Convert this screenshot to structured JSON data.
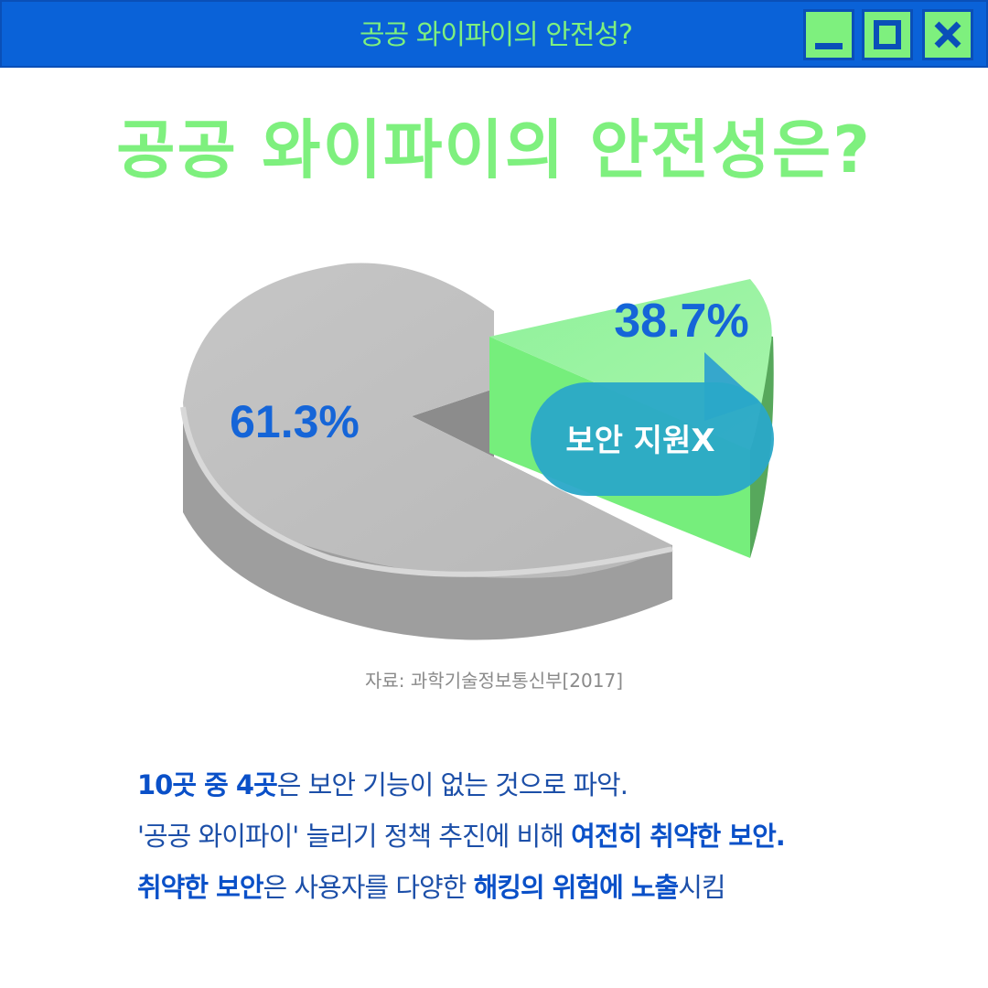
{
  "window": {
    "title": "공공 와이파이의 안전성?",
    "buttons": {
      "minimize": "minimize-icon",
      "maximize": "maximize-icon",
      "close": "close-icon"
    }
  },
  "headline": "공공 와이파이의 안전성은?",
  "chart_data": {
    "type": "pie",
    "title": "",
    "slices": [
      {
        "name": "",
        "value": 61.3,
        "label": "61.3%",
        "color": "#bdbdbd"
      },
      {
        "name": "",
        "value": 38.7,
        "label": "38.7%",
        "color": "#76ee7c"
      }
    ],
    "callout": "보안 지원X"
  },
  "source": "자료: 과학기술정보통신부[2017]",
  "text_lines": [
    [
      {
        "text": "10곳 중 4곳",
        "bold": true
      },
      {
        "text": "은 보안 기능이 없는 것으로 파악.",
        "bold": false
      }
    ],
    [
      {
        "text": "'공공 와이파이' 늘리기 정책 추진에 비해 ",
        "bold": false
      },
      {
        "text": "여전히 취약한 보안.",
        "bold": true
      }
    ],
    [
      {
        "text": "취약한 보안",
        "bold": true
      },
      {
        "text": "은 사용자를 다양한 ",
        "bold": false
      },
      {
        "text": "해킹의 위험에 노출",
        "bold": true
      },
      {
        "text": "시킴",
        "bold": false
      }
    ]
  ],
  "colors": {
    "titlebar": "#0a62d8",
    "accent_green": "#7ef07e",
    "pie_gray": "#bdbdbd",
    "pie_green": "#76ee7c",
    "label_blue": "#1565d8",
    "callout": "#2aa8c8"
  }
}
